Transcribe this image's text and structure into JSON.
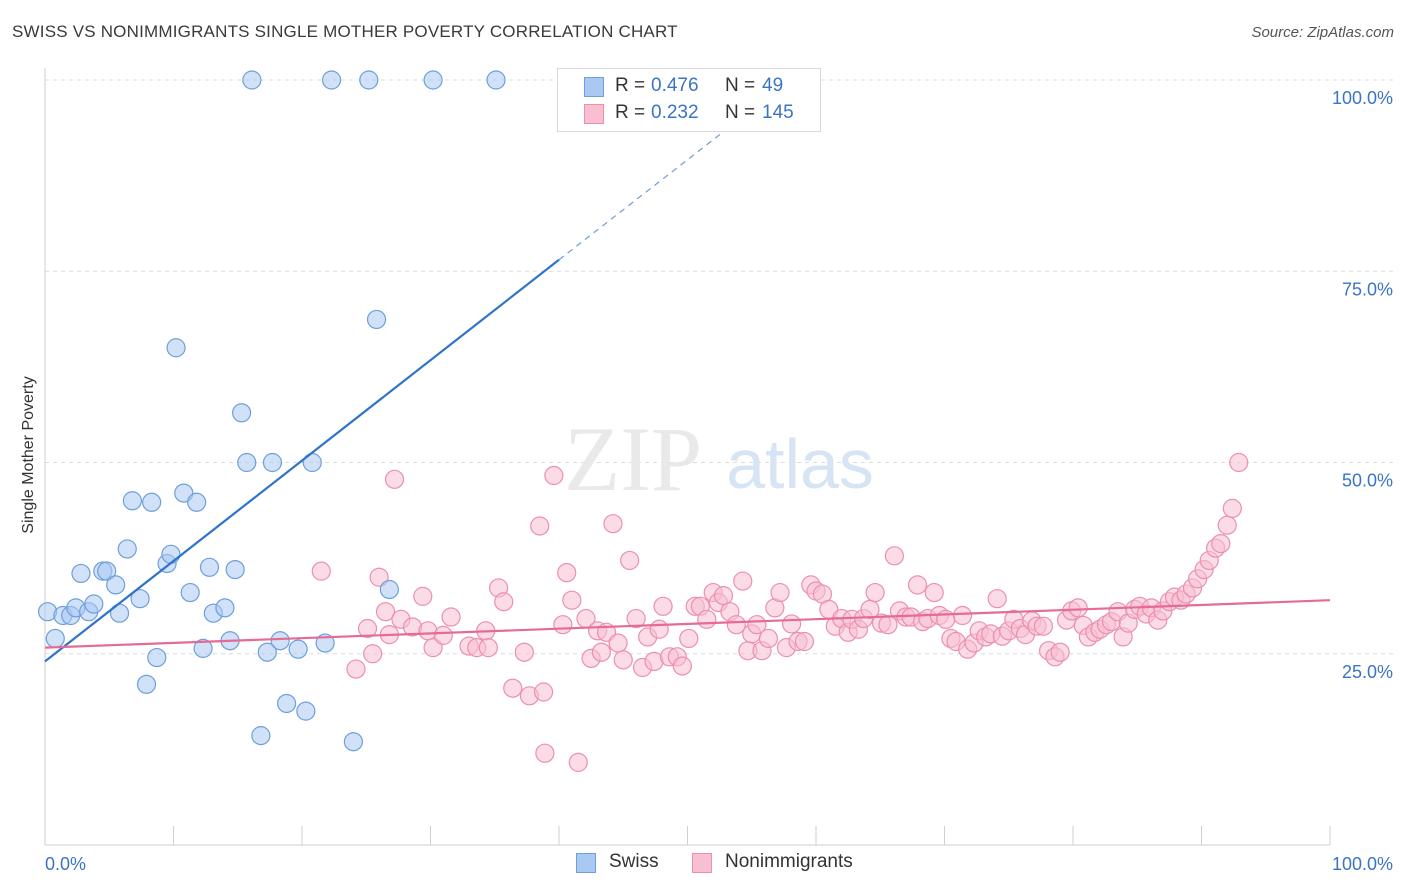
{
  "title": "SWISS VS NONIMMIGRANTS SINGLE MOTHER POVERTY CORRELATION CHART",
  "source": "Source: ZipAtlas.com",
  "watermark": {
    "zip": "ZIP",
    "atlas": "atlas"
  },
  "colors": {
    "swiss_fill": "#a9c9f2",
    "swiss_stroke": "#6d9fdc",
    "swiss_line": "#2e74c9",
    "nonimm_fill": "#f8bfd1",
    "nonimm_stroke": "#ec8fae",
    "nonimm_line": "#e56a95",
    "axis_label": "#3a74c4",
    "grid": "#dcdcdc"
  },
  "stats": {
    "swiss": {
      "r_label": "R =",
      "r_value": "0.476",
      "n_label": "N =",
      "n_value": "49"
    },
    "nonimmigrants": {
      "r_label": "R =",
      "r_value": "0.232",
      "n_label": "N =",
      "n_value": "145"
    }
  },
  "legend": {
    "swiss": "Swiss",
    "nonimmigrants": "Nonimmigrants"
  },
  "chart_data": {
    "type": "scatter",
    "title": "SWISS VS NONIMMIGRANTS SINGLE MOTHER POVERTY CORRELATION CHART",
    "xlabel": "",
    "ylabel": "Single Mother Poverty",
    "xlim": [
      0,
      100
    ],
    "ylim": [
      0,
      102
    ],
    "x_tick_labels": [
      "0.0%",
      "100.0%"
    ],
    "y_ticks": [
      25,
      50,
      75,
      100
    ],
    "y_tick_labels": [
      "25.0%",
      "50.0%",
      "75.0%",
      "100.0%"
    ],
    "grid": true,
    "legend_position": "bottom",
    "series": [
      {
        "name": "Swiss",
        "points": [
          [
            0.2,
            30.5
          ],
          [
            0.8,
            27.0
          ],
          [
            1.4,
            30.0
          ],
          [
            2.0,
            30.0
          ],
          [
            2.4,
            31.0
          ],
          [
            2.8,
            35.5
          ],
          [
            3.4,
            30.5
          ],
          [
            3.8,
            31.5
          ],
          [
            4.5,
            35.8
          ],
          [
            4.8,
            35.8
          ],
          [
            5.5,
            34.0
          ],
          [
            5.8,
            30.3
          ],
          [
            6.4,
            38.7
          ],
          [
            6.8,
            45.0
          ],
          [
            7.4,
            32.2
          ],
          [
            7.9,
            21.0
          ],
          [
            8.3,
            44.8
          ],
          [
            8.7,
            24.5
          ],
          [
            9.5,
            36.8
          ],
          [
            9.8,
            38.0
          ],
          [
            10.2,
            65.0
          ],
          [
            10.8,
            46.0
          ],
          [
            11.3,
            33.0
          ],
          [
            11.8,
            44.8
          ],
          [
            12.3,
            25.7
          ],
          [
            12.8,
            36.3
          ],
          [
            13.1,
            30.3
          ],
          [
            14.0,
            31.0
          ],
          [
            14.4,
            26.7
          ],
          [
            14.8,
            36.0
          ],
          [
            15.3,
            56.5
          ],
          [
            15.7,
            50.0
          ],
          [
            16.1,
            100.0
          ],
          [
            16.8,
            14.3
          ],
          [
            17.3,
            25.2
          ],
          [
            17.7,
            50.0
          ],
          [
            18.3,
            26.7
          ],
          [
            18.8,
            18.5
          ],
          [
            19.7,
            25.6
          ],
          [
            20.3,
            17.5
          ],
          [
            20.8,
            50.0
          ],
          [
            21.8,
            26.4
          ],
          [
            22.3,
            100.0
          ],
          [
            24.0,
            13.5
          ],
          [
            25.2,
            100.0
          ],
          [
            25.8,
            68.7
          ],
          [
            26.8,
            33.4
          ],
          [
            30.2,
            100.0
          ],
          [
            35.1,
            100.0
          ]
        ]
      },
      {
        "name": "Nonimmigrants",
        "points": [
          [
            21.5,
            35.8
          ],
          [
            24.2,
            23.0
          ],
          [
            25.1,
            28.3
          ],
          [
            25.5,
            25.0
          ],
          [
            26.0,
            35.0
          ],
          [
            26.5,
            30.5
          ],
          [
            26.8,
            27.5
          ],
          [
            27.2,
            47.8
          ],
          [
            27.7,
            29.5
          ],
          [
            28.6,
            28.5
          ],
          [
            29.4,
            32.5
          ],
          [
            29.8,
            28.0
          ],
          [
            30.2,
            25.8
          ],
          [
            31.0,
            27.4
          ],
          [
            31.6,
            29.8
          ],
          [
            33.0,
            26.0
          ],
          [
            33.6,
            25.8
          ],
          [
            34.3,
            28.0
          ],
          [
            34.5,
            25.8
          ],
          [
            35.3,
            33.6
          ],
          [
            35.7,
            31.8
          ],
          [
            36.4,
            20.5
          ],
          [
            37.3,
            25.2
          ],
          [
            37.7,
            19.5
          ],
          [
            38.5,
            41.7
          ],
          [
            38.8,
            20.0
          ],
          [
            38.9,
            12.0
          ],
          [
            39.6,
            48.3
          ],
          [
            40.3,
            28.8
          ],
          [
            40.6,
            35.6
          ],
          [
            41.0,
            32.0
          ],
          [
            41.5,
            10.8
          ],
          [
            42.1,
            29.6
          ],
          [
            42.5,
            24.4
          ],
          [
            43.0,
            28.0
          ],
          [
            43.3,
            25.2
          ],
          [
            43.7,
            27.8
          ],
          [
            44.2,
            42.0
          ],
          [
            44.6,
            26.4
          ],
          [
            45.0,
            24.2
          ],
          [
            45.5,
            37.2
          ],
          [
            46.0,
            29.6
          ],
          [
            46.5,
            23.2
          ],
          [
            46.9,
            27.2
          ],
          [
            47.4,
            24.0
          ],
          [
            47.8,
            28.2
          ],
          [
            48.1,
            31.2
          ],
          [
            48.6,
            24.6
          ],
          [
            49.2,
            24.6
          ],
          [
            49.6,
            23.4
          ],
          [
            50.1,
            27.0
          ],
          [
            50.6,
            31.2
          ],
          [
            51.0,
            31.2
          ],
          [
            51.5,
            29.5
          ],
          [
            52.0,
            33.0
          ],
          [
            52.4,
            31.7
          ],
          [
            52.8,
            32.6
          ],
          [
            53.3,
            30.5
          ],
          [
            53.8,
            28.8
          ],
          [
            54.3,
            34.5
          ],
          [
            54.7,
            25.4
          ],
          [
            55.0,
            27.6
          ],
          [
            55.4,
            28.8
          ],
          [
            55.8,
            25.4
          ],
          [
            56.3,
            27.0
          ],
          [
            56.8,
            31.0
          ],
          [
            57.2,
            33.0
          ],
          [
            57.7,
            25.8
          ],
          [
            58.1,
            28.9
          ],
          [
            58.6,
            26.6
          ],
          [
            59.1,
            26.6
          ],
          [
            59.6,
            34.0
          ],
          [
            60.0,
            33.2
          ],
          [
            60.5,
            32.8
          ],
          [
            61.0,
            30.8
          ],
          [
            61.5,
            28.6
          ],
          [
            62.0,
            29.6
          ],
          [
            62.5,
            27.8
          ],
          [
            62.8,
            29.5
          ],
          [
            63.3,
            28.2
          ],
          [
            63.7,
            29.6
          ],
          [
            64.2,
            30.8
          ],
          [
            64.6,
            33.0
          ],
          [
            65.1,
            29.0
          ],
          [
            65.6,
            28.8
          ],
          [
            66.1,
            37.8
          ],
          [
            66.5,
            30.6
          ],
          [
            67.0,
            29.8
          ],
          [
            67.4,
            29.8
          ],
          [
            67.9,
            34.0
          ],
          [
            68.3,
            29.2
          ],
          [
            68.7,
            29.6
          ],
          [
            69.2,
            33.0
          ],
          [
            69.6,
            30.0
          ],
          [
            70.1,
            29.5
          ],
          [
            70.5,
            27.0
          ],
          [
            70.9,
            26.6
          ],
          [
            71.4,
            30.0
          ],
          [
            71.8,
            25.6
          ],
          [
            72.3,
            26.4
          ],
          [
            72.7,
            28.0
          ],
          [
            73.2,
            27.2
          ],
          [
            73.6,
            27.6
          ],
          [
            74.1,
            32.2
          ],
          [
            74.5,
            27.3
          ],
          [
            75.0,
            28.0
          ],
          [
            75.4,
            29.5
          ],
          [
            75.9,
            28.3
          ],
          [
            76.3,
            27.5
          ],
          [
            76.8,
            29.3
          ],
          [
            77.2,
            28.6
          ],
          [
            77.7,
            28.6
          ],
          [
            78.1,
            25.4
          ],
          [
            78.6,
            24.6
          ],
          [
            79.0,
            25.2
          ],
          [
            79.5,
            29.4
          ],
          [
            79.9,
            30.6
          ],
          [
            80.4,
            31.0
          ],
          [
            80.8,
            28.7
          ],
          [
            81.2,
            27.2
          ],
          [
            81.7,
            27.8
          ],
          [
            82.1,
            28.2
          ],
          [
            82.6,
            28.8
          ],
          [
            83.0,
            29.2
          ],
          [
            83.5,
            30.5
          ],
          [
            83.9,
            27.2
          ],
          [
            84.3,
            29.0
          ],
          [
            84.8,
            30.8
          ],
          [
            85.2,
            31.2
          ],
          [
            85.7,
            30.2
          ],
          [
            86.1,
            31.0
          ],
          [
            86.6,
            29.4
          ],
          [
            87.0,
            30.6
          ],
          [
            87.5,
            31.8
          ],
          [
            87.9,
            32.4
          ],
          [
            88.4,
            32.0
          ],
          [
            88.8,
            32.8
          ],
          [
            89.3,
            33.6
          ],
          [
            89.7,
            34.8
          ],
          [
            90.2,
            36.0
          ],
          [
            90.6,
            37.2
          ],
          [
            91.1,
            38.8
          ],
          [
            91.5,
            39.4
          ],
          [
            92.0,
            41.8
          ],
          [
            92.4,
            44.0
          ],
          [
            92.9,
            50.0
          ]
        ]
      }
    ],
    "trendlines": [
      {
        "series": "Swiss",
        "solid": [
          [
            0,
            24.0
          ],
          [
            40,
            76.5
          ]
        ],
        "dashed": [
          [
            40,
            76.5
          ],
          [
            53,
            93.5
          ]
        ]
      },
      {
        "series": "Nonimmigrants",
        "solid": [
          [
            0,
            25.8
          ],
          [
            100,
            32.0
          ]
        ]
      }
    ]
  }
}
